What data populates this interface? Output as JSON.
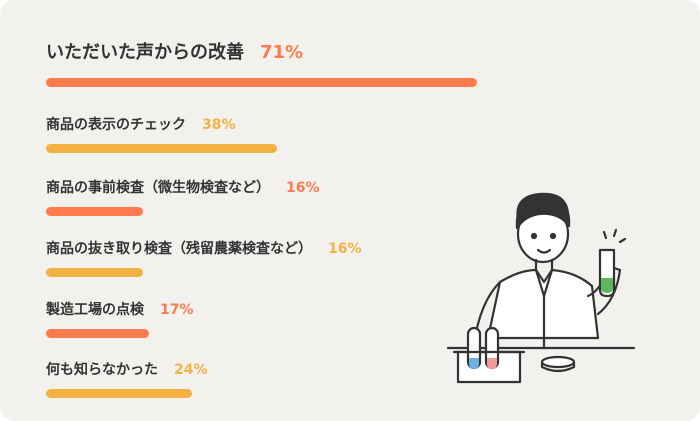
{
  "chart_data": {
    "type": "bar",
    "orientation": "horizontal",
    "categories": [
      "いただいた声からの改善",
      "商品の表示のチェック",
      "商品の事前検査（微生物検査など）",
      "商品の抜き取り検査（残留農薬検査など）",
      "製造工場の点検",
      "何も知らなかった"
    ],
    "values": [
      71,
      38,
      16,
      16,
      17,
      24
    ],
    "value_labels": [
      "71%",
      "38%",
      "16%",
      "16%",
      "17%",
      "24%"
    ],
    "colors": [
      "#ff7a4d",
      "#f5b042",
      "#ff7a4d",
      "#f5b042",
      "#ff7a4d",
      "#f5b042"
    ]
  }
}
